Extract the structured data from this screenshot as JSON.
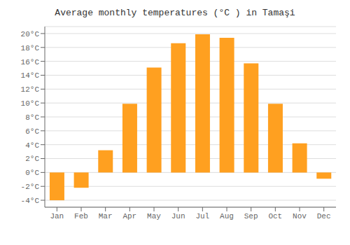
{
  "chart_data": {
    "type": "bar",
    "title": "Average monthly temperatures (°C ) in Tamaşi",
    "categories": [
      "Jan",
      "Feb",
      "Mar",
      "Apr",
      "May",
      "Jun",
      "Jul",
      "Aug",
      "Sep",
      "Oct",
      "Nov",
      "Dec"
    ],
    "values": [
      -4.0,
      -2.2,
      3.2,
      9.9,
      15.1,
      18.6,
      19.9,
      19.4,
      15.7,
      9.9,
      4.2,
      -0.9
    ],
    "color": "#FFA020",
    "ylim": [
      -5,
      21
    ],
    "yticks": [
      {
        "value": -4,
        "label": "-4°C"
      },
      {
        "value": -2,
        "label": "-2°C"
      },
      {
        "value": 0,
        "label": "0°C"
      },
      {
        "value": 2,
        "label": "2°C"
      },
      {
        "value": 4,
        "label": "4°C"
      },
      {
        "value": 6,
        "label": "6°C"
      },
      {
        "value": 8,
        "label": "8°C"
      },
      {
        "value": 10,
        "label": "10°C"
      },
      {
        "value": 12,
        "label": "12°C"
      },
      {
        "value": 14,
        "label": "14°C"
      },
      {
        "value": 16,
        "label": "16°C"
      },
      {
        "value": 18,
        "label": "18°C"
      },
      {
        "value": 20,
        "label": "20°C"
      }
    ],
    "grid": true
  }
}
